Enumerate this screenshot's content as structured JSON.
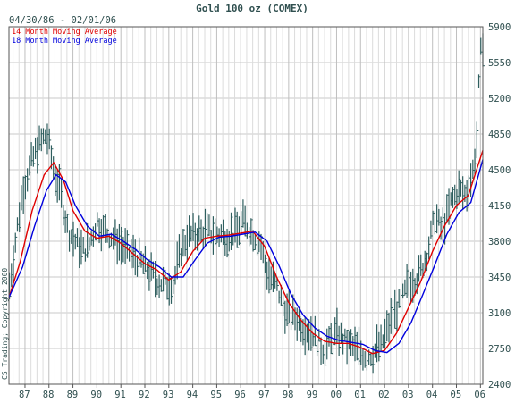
{
  "chart_data": {
    "type": "bar",
    "title": "Gold 100 oz (COMEX)",
    "date_range": "04/30/86 - 02/01/06",
    "copyright": "CS Trading; Copyright 2000",
    "xlabel": "",
    "ylabel": "",
    "ylim": [
      2400,
      5900
    ],
    "yticks": [
      2400,
      2750,
      3100,
      3450,
      3800,
      4150,
      4500,
      4850,
      5200,
      5550,
      5900
    ],
    "xticks": [
      "87",
      "88",
      "89",
      "90",
      "91",
      "92",
      "93",
      "94",
      "95",
      "96",
      "97",
      "98",
      "99",
      "00",
      "01",
      "02",
      "03",
      "04",
      "05",
      "06"
    ],
    "xlim": [
      1986.33,
      2006.1
    ],
    "grid": true,
    "legend": "top-left",
    "colors": {
      "bars": "#2f5f5f",
      "ma14": "#e00000",
      "ma18": "#0000dd",
      "grid": "#c8c8c8",
      "axis": "#555555"
    },
    "price_path": [
      [
        1986.33,
        3330
      ],
      [
        1986.6,
        3800
      ],
      [
        1986.9,
        4300
      ],
      [
        1987.3,
        4600
      ],
      [
        1987.6,
        4750
      ],
      [
        1987.9,
        4850
      ],
      [
        1988.0,
        4750
      ],
      [
        1988.2,
        4500
      ],
      [
        1988.5,
        4250
      ],
      [
        1988.8,
        3900
      ],
      [
        1989.1,
        3800
      ],
      [
        1989.4,
        3700
      ],
      [
        1989.7,
        3780
      ],
      [
        1990.0,
        4000
      ],
      [
        1990.3,
        3900
      ],
      [
        1990.6,
        3850
      ],
      [
        1990.9,
        3800
      ],
      [
        1991.2,
        3700
      ],
      [
        1991.6,
        3650
      ],
      [
        1992.0,
        3560
      ],
      [
        1992.3,
        3480
      ],
      [
        1992.6,
        3400
      ],
      [
        1992.9,
        3380
      ],
      [
        1993.2,
        3400
      ],
      [
        1993.5,
        3700
      ],
      [
        1993.8,
        3850
      ],
      [
        1994.2,
        3880
      ],
      [
        1994.6,
        3900
      ],
      [
        1995.0,
        3870
      ],
      [
        1995.4,
        3860
      ],
      [
        1995.8,
        3880
      ],
      [
        1996.1,
        4000
      ],
      [
        1996.4,
        3900
      ],
      [
        1996.8,
        3800
      ],
      [
        1997.1,
        3500
      ],
      [
        1997.5,
        3350
      ],
      [
        1997.9,
        3100
      ],
      [
        1998.3,
        3050
      ],
      [
        1998.7,
        2950
      ],
      [
        1999.0,
        2900
      ],
      [
        1999.4,
        2750
      ],
      [
        1999.7,
        2800
      ],
      [
        2000.0,
        2900
      ],
      [
        2000.4,
        2800
      ],
      [
        2000.8,
        2750
      ],
      [
        2001.2,
        2680
      ],
      [
        2001.5,
        2700
      ],
      [
        2001.9,
        2800
      ],
      [
        2002.3,
        3050
      ],
      [
        2002.7,
        3200
      ],
      [
        2003.0,
        3400
      ],
      [
        2003.4,
        3450
      ],
      [
        2003.8,
        3700
      ],
      [
        2004.1,
        4050
      ],
      [
        2004.4,
        3900
      ],
      [
        2004.8,
        4200
      ],
      [
        2005.1,
        4300
      ],
      [
        2005.4,
        4250
      ],
      [
        2005.7,
        4500
      ],
      [
        2005.85,
        4800
      ],
      [
        2005.95,
        5400
      ],
      [
        2006.05,
        5760
      ],
      [
        2006.1,
        5750
      ]
    ],
    "series": [
      {
        "name": "14 Month Moving Average",
        "color": "#e00000",
        "points": [
          [
            1986.33,
            3250
          ],
          [
            1986.8,
            3600
          ],
          [
            1987.3,
            4100
          ],
          [
            1987.8,
            4450
          ],
          [
            1988.2,
            4570
          ],
          [
            1988.6,
            4400
          ],
          [
            1989.0,
            4100
          ],
          [
            1989.5,
            3900
          ],
          [
            1990.0,
            3830
          ],
          [
            1990.5,
            3850
          ],
          [
            1991.0,
            3780
          ],
          [
            1991.5,
            3680
          ],
          [
            1992.0,
            3580
          ],
          [
            1992.5,
            3520
          ],
          [
            1993.0,
            3420
          ],
          [
            1993.5,
            3500
          ],
          [
            1994.0,
            3700
          ],
          [
            1994.5,
            3830
          ],
          [
            1995.0,
            3850
          ],
          [
            1995.5,
            3860
          ],
          [
            1996.0,
            3880
          ],
          [
            1996.5,
            3900
          ],
          [
            1997.0,
            3750
          ],
          [
            1997.5,
            3450
          ],
          [
            1998.0,
            3200
          ],
          [
            1998.5,
            3030
          ],
          [
            1999.0,
            2900
          ],
          [
            1999.5,
            2820
          ],
          [
            2000.0,
            2800
          ],
          [
            2000.5,
            2800
          ],
          [
            2001.0,
            2760
          ],
          [
            2001.5,
            2700
          ],
          [
            2002.0,
            2730
          ],
          [
            2002.5,
            2900
          ],
          [
            2003.0,
            3150
          ],
          [
            2003.5,
            3400
          ],
          [
            2004.0,
            3700
          ],
          [
            2004.5,
            3950
          ],
          [
            2005.0,
            4150
          ],
          [
            2005.5,
            4250
          ],
          [
            2006.1,
            4690
          ]
        ]
      },
      {
        "name": "18 Month Moving Average",
        "color": "#0000dd",
        "points": [
          [
            1986.33,
            3250
          ],
          [
            1986.9,
            3550
          ],
          [
            1987.4,
            3950
          ],
          [
            1987.9,
            4300
          ],
          [
            1988.3,
            4450
          ],
          [
            1988.7,
            4380
          ],
          [
            1989.1,
            4150
          ],
          [
            1989.6,
            3950
          ],
          [
            1990.1,
            3850
          ],
          [
            1990.6,
            3870
          ],
          [
            1991.1,
            3800
          ],
          [
            1991.6,
            3720
          ],
          [
            1992.1,
            3620
          ],
          [
            1992.6,
            3550
          ],
          [
            1993.1,
            3450
          ],
          [
            1993.6,
            3450
          ],
          [
            1994.1,
            3620
          ],
          [
            1994.6,
            3780
          ],
          [
            1995.1,
            3840
          ],
          [
            1995.6,
            3850
          ],
          [
            1996.1,
            3870
          ],
          [
            1996.6,
            3890
          ],
          [
            1997.1,
            3800
          ],
          [
            1997.6,
            3560
          ],
          [
            1998.1,
            3280
          ],
          [
            1998.6,
            3080
          ],
          [
            1999.1,
            2950
          ],
          [
            1999.6,
            2870
          ],
          [
            2000.1,
            2830
          ],
          [
            2000.6,
            2810
          ],
          [
            2001.1,
            2790
          ],
          [
            2001.6,
            2730
          ],
          [
            2002.1,
            2710
          ],
          [
            2002.6,
            2800
          ],
          [
            2003.1,
            3000
          ],
          [
            2003.6,
            3280
          ],
          [
            2004.1,
            3570
          ],
          [
            2004.6,
            3870
          ],
          [
            2005.1,
            4080
          ],
          [
            2005.6,
            4180
          ],
          [
            2006.1,
            4600
          ]
        ]
      }
    ]
  }
}
